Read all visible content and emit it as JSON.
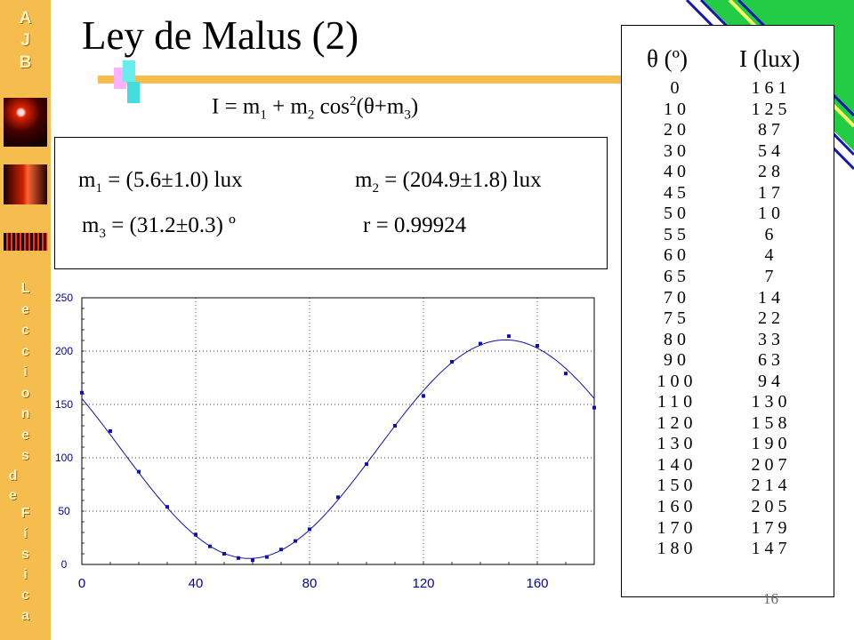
{
  "slide": {
    "title": "Ley de Malus (2)",
    "page_number": "16",
    "formula": {
      "lhs": "I = m",
      "s1": "1",
      "mid": " + m",
      "s2": "2",
      "cos": " cos",
      "sup": "2",
      "arg": "(θ+m",
      "s3": "3",
      "close": ")"
    },
    "params": {
      "m1": {
        "name": "m",
        "sub": "1",
        "text": " = (5.6±1.0) lux"
      },
      "m2": {
        "name": "m",
        "sub": "2",
        "text": " = (204.9±1.8) lux"
      },
      "m3": {
        "name": "m",
        "sub": "3",
        "text": " = (31.2±0.3) º"
      },
      "r": "r = 0.99924"
    },
    "sidebar": {
      "top_letters": [
        "A",
        "J",
        "B"
      ],
      "vertical_text": [
        "L",
        "e",
        "c",
        "c",
        "i",
        "o",
        "n",
        "e",
        "s",
        "d",
        "e",
        "F",
        "í",
        "s",
        "i",
        "c",
        "a"
      ]
    },
    "colors": {
      "sidebar": "#f5bd4e",
      "green": "#22cc44",
      "blue": "#1515b0",
      "cyan": "#66eeee",
      "pink": "#ffb0ff"
    }
  },
  "table": {
    "headers": [
      "θ (º)",
      "I (lux)"
    ],
    "theta": [
      "0",
      "10",
      "20",
      "30",
      "40",
      "45",
      "50",
      "55",
      "60",
      "65",
      "70",
      "75",
      "80",
      "90",
      "100",
      "110",
      "120",
      "130",
      "140",
      "150",
      "160",
      "170",
      "180"
    ],
    "intensity": [
      "161",
      "125",
      "87",
      "54",
      "28",
      "17",
      "10",
      "6",
      "4",
      "7",
      "14",
      "22",
      "33",
      "63",
      "94",
      "130",
      "158",
      "190",
      "207",
      "214",
      "205",
      "179",
      "147"
    ]
  },
  "chart_data": {
    "type": "scatter",
    "x_ticks": [
      "0",
      "40",
      "80",
      "120",
      "160"
    ],
    "y_ticks": [
      "0",
      "50",
      "100",
      "150",
      "200",
      "250"
    ],
    "xlim": [
      0,
      180
    ],
    "ylim": [
      0,
      250
    ],
    "grid": true,
    "series": [
      {
        "x": [
          0,
          10,
          20,
          30,
          40,
          45,
          50,
          55,
          60,
          65,
          70,
          75,
          80,
          90,
          100,
          110,
          120,
          130,
          140,
          150,
          160,
          170,
          180
        ],
        "y": [
          161,
          125,
          87,
          54,
          28,
          17,
          10,
          6,
          4,
          7,
          14,
          22,
          33,
          63,
          94,
          130,
          158,
          190,
          207,
          214,
          205,
          179,
          147
        ]
      }
    ],
    "fit": {
      "model": "I = m1 + m2 cos^2(θ+m3)",
      "m1": 5.6,
      "m2": 204.9,
      "m3": 31.2
    }
  }
}
